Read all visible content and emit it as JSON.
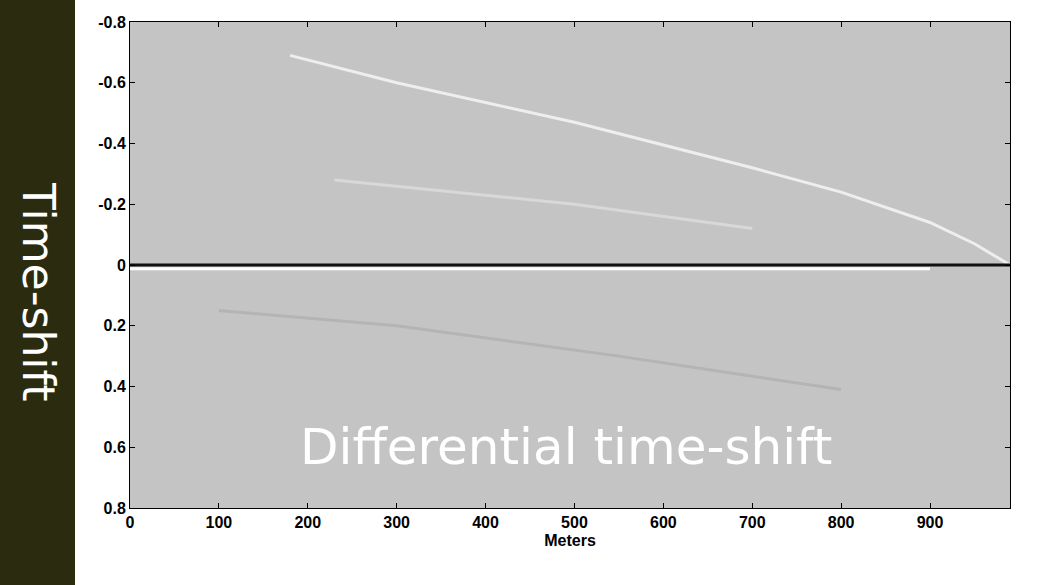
{
  "chart_data": {
    "type": "line",
    "x_label": "Meters",
    "y_label": "Time-shift",
    "annotations": [
      {
        "text": "Differential time-shift",
        "x": 490,
        "y": 0.6
      }
    ],
    "xlim": [
      0,
      990
    ],
    "ylim": [
      -0.8,
      0.8
    ],
    "xticks": [
      0,
      100,
      200,
      300,
      400,
      500,
      600,
      700,
      800,
      900
    ],
    "yticks": [
      -0.8,
      -0.6,
      -0.4,
      -0.2,
      0,
      0.2,
      0.4,
      0.6,
      0.8
    ],
    "grid": false,
    "series": [
      {
        "color": "#b4b4b4",
        "x": [
          100,
          300,
          550,
          800
        ],
        "values": [
          0.15,
          0.2,
          0.3,
          0.41
        ]
      },
      {
        "color": "#d8d8d8",
        "x": [
          230,
          500,
          700
        ],
        "values": [
          -0.28,
          -0.2,
          -0.12
        ]
      },
      {
        "color": "#eeeeee",
        "x": [
          180,
          300,
          500,
          700,
          800,
          900,
          950,
          990
        ],
        "values": [
          -0.69,
          -0.6,
          -0.47,
          -0.32,
          -0.24,
          -0.14,
          -0.07,
          0
        ]
      },
      {
        "color": "#ffffff",
        "x": [
          0,
          900
        ],
        "values": [
          0.012,
          0.012
        ]
      },
      {
        "color": "#111111",
        "x": [
          0,
          900,
          990
        ],
        "values": [
          0,
          0,
          0
        ]
      }
    ]
  }
}
